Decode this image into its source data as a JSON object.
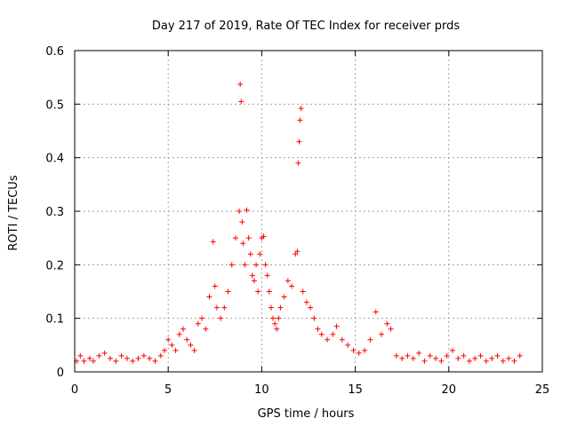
{
  "chart_data": {
    "type": "scatter",
    "title": "Day 217 of 2019, Rate Of TEC Index for receiver prds",
    "xlabel": "GPS time / hours",
    "ylabel": "ROTI / TECUs",
    "xlim": [
      0,
      25
    ],
    "ylim": [
      0,
      0.6
    ],
    "xticks": [
      0,
      5,
      10,
      15,
      20,
      25
    ],
    "yticks": [
      0,
      0.1,
      0.2,
      0.3,
      0.4,
      0.5,
      0.6
    ],
    "grid": true,
    "marker": "+",
    "color": "#ff0000",
    "series": [
      {
        "name": "ROTI",
        "x": [
          0.1,
          0.3,
          0.5,
          0.8,
          1.0,
          1.3,
          1.6,
          1.9,
          2.2,
          2.5,
          2.8,
          3.1,
          3.4,
          3.7,
          4.0,
          4.3,
          4.6,
          4.8,
          5.0,
          5.2,
          5.4,
          5.6,
          5.8,
          6.0,
          6.2,
          6.4,
          6.6,
          6.8,
          7.0,
          7.2,
          7.4,
          7.5,
          7.6,
          7.8,
          8.0,
          8.2,
          8.4,
          8.6,
          8.8,
          8.85,
          8.9,
          8.95,
          9.0,
          9.1,
          9.2,
          9.3,
          9.4,
          9.5,
          9.6,
          9.7,
          9.8,
          9.9,
          10.0,
          10.1,
          10.2,
          10.3,
          10.4,
          10.5,
          10.6,
          10.7,
          10.8,
          10.9,
          11.0,
          11.2,
          11.4,
          11.6,
          11.8,
          11.9,
          11.95,
          12.0,
          12.05,
          12.1,
          12.2,
          12.4,
          12.6,
          12.8,
          13.0,
          13.2,
          13.5,
          13.8,
          14.0,
          14.3,
          14.6,
          14.9,
          15.2,
          15.5,
          15.8,
          16.1,
          16.4,
          16.7,
          16.9,
          17.2,
          17.5,
          17.8,
          18.1,
          18.4,
          18.7,
          19.0,
          19.3,
          19.6,
          19.9,
          20.2,
          20.5,
          20.8,
          21.1,
          21.4,
          21.7,
          22.0,
          22.3,
          22.6,
          22.9,
          23.2,
          23.5,
          23.8
        ],
        "y": [
          0.02,
          0.03,
          0.02,
          0.025,
          0.02,
          0.03,
          0.035,
          0.025,
          0.02,
          0.03,
          0.025,
          0.02,
          0.025,
          0.03,
          0.025,
          0.02,
          0.03,
          0.04,
          0.06,
          0.05,
          0.04,
          0.07,
          0.08,
          0.06,
          0.05,
          0.04,
          0.09,
          0.1,
          0.08,
          0.14,
          0.243,
          0.16,
          0.12,
          0.1,
          0.12,
          0.15,
          0.2,
          0.25,
          0.3,
          0.537,
          0.505,
          0.28,
          0.24,
          0.2,
          0.302,
          0.25,
          0.22,
          0.18,
          0.17,
          0.2,
          0.15,
          0.22,
          0.25,
          0.253,
          0.2,
          0.18,
          0.15,
          0.12,
          0.1,
          0.09,
          0.08,
          0.1,
          0.12,
          0.14,
          0.17,
          0.16,
          0.22,
          0.225,
          0.39,
          0.43,
          0.47,
          0.492,
          0.15,
          0.13,
          0.12,
          0.1,
          0.08,
          0.07,
          0.06,
          0.07,
          0.085,
          0.06,
          0.05,
          0.04,
          0.035,
          0.04,
          0.06,
          0.112,
          0.07,
          0.09,
          0.08,
          0.03,
          0.025,
          0.03,
          0.025,
          0.035,
          0.02,
          0.03,
          0.025,
          0.02,
          0.03,
          0.04,
          0.025,
          0.03,
          0.02,
          0.025,
          0.03,
          0.02,
          0.025,
          0.03,
          0.02,
          0.025,
          0.02,
          0.03
        ]
      }
    ]
  }
}
